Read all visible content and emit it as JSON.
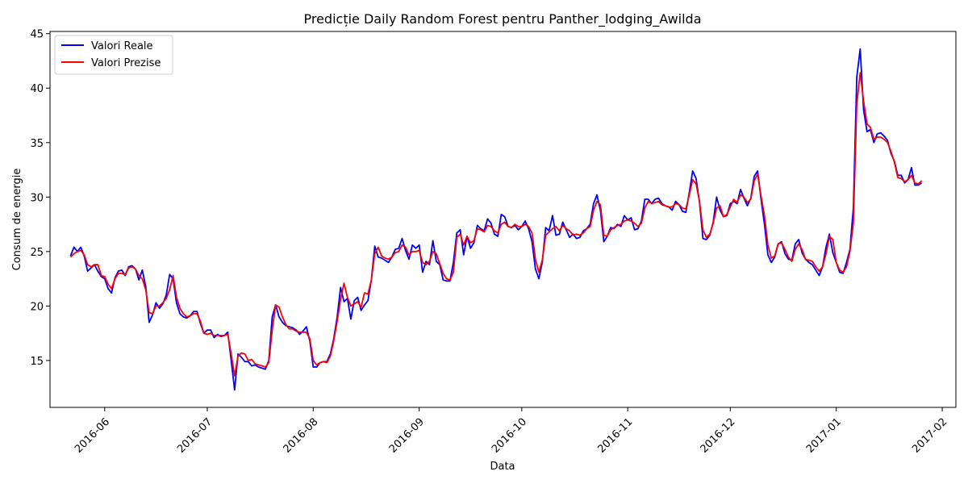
{
  "chart_data": {
    "type": "line",
    "title": "Predicție Daily Random Forest pentru Panther_lodging_Awilda",
    "xlabel": "Data",
    "ylabel": "Consum de energie",
    "xlim": [
      "2016-05-16",
      "2017-02-05"
    ],
    "ylim": [
      10.7,
      45.2
    ],
    "x_ticks": [
      "2016-06",
      "2016-07",
      "2016-08",
      "2016-09",
      "2016-10",
      "2016-11",
      "2016-12",
      "2017-01",
      "2017-02"
    ],
    "y_ticks": [
      15,
      20,
      25,
      30,
      35,
      40,
      45
    ],
    "grid": false,
    "legend_position": "top-left",
    "x_start_date": "2016-05-22",
    "x_step_days": 1,
    "series": [
      {
        "name": "Valori Reale",
        "color": "#0000ff",
        "values": [
          24.6,
          25.4,
          25.0,
          25.4,
          24.6,
          23.2,
          23.5,
          23.8,
          23.2,
          22.7,
          22.5,
          21.6,
          21.2,
          22.6,
          23.2,
          23.3,
          22.8,
          23.6,
          23.7,
          23.4,
          22.4,
          23.3,
          21.8,
          18.5,
          19.2,
          20.3,
          19.8,
          20.2,
          21.0,
          22.9,
          22.5,
          20.3,
          19.3,
          19.0,
          18.9,
          19.1,
          19.5,
          19.5,
          18.4,
          17.5,
          17.8,
          17.8,
          17.1,
          17.4,
          17.2,
          17.3,
          17.6,
          15.0,
          12.3,
          15.6,
          15.3,
          14.9,
          14.9,
          14.5,
          14.6,
          14.4,
          14.3,
          14.2,
          15.0,
          19.0,
          20.1,
          19.0,
          18.5,
          18.2,
          18.1,
          18.0,
          17.8,
          17.4,
          17.7,
          18.1,
          16.8,
          14.4,
          14.4,
          14.8,
          14.9,
          14.9,
          15.6,
          17.0,
          19.0,
          21.7,
          20.4,
          20.7,
          18.8,
          20.5,
          20.8,
          19.6,
          20.1,
          20.5,
          22.4,
          25.5,
          24.5,
          24.4,
          24.2,
          24.0,
          24.5,
          25.2,
          25.3,
          26.2,
          25.1,
          24.3,
          25.6,
          25.3,
          25.6,
          23.1,
          24.1,
          23.8,
          26.0,
          24.1,
          23.8,
          22.4,
          22.3,
          22.3,
          24.0,
          26.7,
          27.0,
          24.7,
          26.4,
          25.3,
          25.8,
          27.4,
          27.1,
          26.9,
          28.0,
          27.6,
          26.6,
          26.4,
          28.4,
          28.2,
          27.3,
          27.2,
          27.4,
          27.0,
          27.3,
          27.8,
          27.1,
          25.9,
          23.4,
          22.5,
          24.0,
          27.2,
          26.9,
          28.3,
          26.5,
          26.6,
          27.7,
          27.0,
          26.3,
          26.6,
          26.2,
          26.3,
          26.9,
          27.1,
          27.5,
          29.4,
          30.2,
          28.8,
          25.9,
          26.4,
          27.2,
          27.1,
          27.5,
          27.3,
          28.3,
          27.9,
          28.1,
          27.0,
          27.1,
          27.8,
          29.8,
          29.8,
          29.4,
          29.8,
          29.9,
          29.4,
          29.2,
          29.1,
          28.8,
          29.6,
          29.3,
          28.7,
          28.6,
          30.4,
          32.4,
          31.7,
          29.5,
          26.2,
          26.1,
          26.5,
          27.7,
          30.0,
          28.8,
          28.2,
          28.3,
          29.4,
          29.6,
          29.4,
          30.7,
          29.9,
          29.2,
          29.9,
          31.9,
          32.4,
          29.8,
          27.5,
          24.7,
          24.0,
          24.5,
          25.7,
          25.9,
          24.8,
          24.3,
          24.2,
          25.7,
          26.1,
          24.9,
          24.3,
          24.0,
          23.8,
          23.3,
          22.8,
          23.6,
          25.4,
          26.6,
          24.9,
          24.0,
          23.1,
          23.0,
          24.0,
          25.2,
          29.0,
          41.0,
          43.6,
          38.0,
          36.0,
          36.2,
          35.0,
          35.8,
          35.9,
          35.6,
          35.2,
          34.0,
          33.3,
          32.0,
          32.0,
          31.3,
          31.6,
          32.7,
          31.1,
          31.1,
          31.3
        ]
      },
      {
        "name": "Valori Prezise",
        "color": "#ff0000",
        "values": [
          24.5,
          24.8,
          25.0,
          25.1,
          24.7,
          23.8,
          23.6,
          23.8,
          23.8,
          22.8,
          22.7,
          22.0,
          21.6,
          22.5,
          23.0,
          23.0,
          22.9,
          23.5,
          23.6,
          23.4,
          22.8,
          22.5,
          21.5,
          19.4,
          19.3,
          20.0,
          20.0,
          20.3,
          20.7,
          21.5,
          22.8,
          20.8,
          19.8,
          19.3,
          19.0,
          19.1,
          19.3,
          19.3,
          18.6,
          17.5,
          17.4,
          17.5,
          17.3,
          17.3,
          17.3,
          17.3,
          17.4,
          15.6,
          13.6,
          15.4,
          15.7,
          15.6,
          15.0,
          15.1,
          14.7,
          14.6,
          14.5,
          14.4,
          14.8,
          17.8,
          20.1,
          19.9,
          19.0,
          18.3,
          17.9,
          17.9,
          17.7,
          17.6,
          17.6,
          17.6,
          17.0,
          15.0,
          14.6,
          14.8,
          14.9,
          14.8,
          15.4,
          16.8,
          18.6,
          20.6,
          22.1,
          20.8,
          20.0,
          20.2,
          20.4,
          19.9,
          21.2,
          21.1,
          22.4,
          24.8,
          25.4,
          24.6,
          24.4,
          24.3,
          24.5,
          24.9,
          25.0,
          25.6,
          25.4,
          24.7,
          25.0,
          25.0,
          25.1,
          24.0,
          23.8,
          24.1,
          25.0,
          24.8,
          23.9,
          23.0,
          22.5,
          22.4,
          23.1,
          26.3,
          26.6,
          25.6,
          26.4,
          25.8,
          26.0,
          27.1,
          27.0,
          26.8,
          27.4,
          27.3,
          26.9,
          26.7,
          27.5,
          27.7,
          27.3,
          27.2,
          27.5,
          27.3,
          27.3,
          27.5,
          27.3,
          26.7,
          24.3,
          23.1,
          24.2,
          26.5,
          26.8,
          27.1,
          27.3,
          26.9,
          27.4,
          27.1,
          26.9,
          26.5,
          26.6,
          26.5,
          26.7,
          27.1,
          27.3,
          28.8,
          29.6,
          29.3,
          26.5,
          26.4,
          27.0,
          27.2,
          27.4,
          27.5,
          27.8,
          27.9,
          27.8,
          27.6,
          27.3,
          27.6,
          29.0,
          29.6,
          29.4,
          29.5,
          29.6,
          29.3,
          29.2,
          29.1,
          29.1,
          29.4,
          29.3,
          29.0,
          28.9,
          30.2,
          31.6,
          31.2,
          29.6,
          27.0,
          26.3,
          26.6,
          27.6,
          29.0,
          29.2,
          28.2,
          28.4,
          29.1,
          29.8,
          29.5,
          30.2,
          30.0,
          29.5,
          29.8,
          31.5,
          32.1,
          30.1,
          28.3,
          25.6,
          24.4,
          24.6,
          25.7,
          25.8,
          25.2,
          24.5,
          24.1,
          25.2,
          25.7,
          25.2,
          24.3,
          24.2,
          24.1,
          23.6,
          23.2,
          23.6,
          24.8,
          26.4,
          26.1,
          24.0,
          23.3,
          23.1,
          23.6,
          25.0,
          27.6,
          38.5,
          41.4,
          38.8,
          36.7,
          36.4,
          35.3,
          35.5,
          35.5,
          35.3,
          35.0,
          34.2,
          33.2,
          31.8,
          31.7,
          31.4,
          31.6,
          32.0,
          31.3,
          31.2,
          31.5
        ]
      }
    ]
  }
}
